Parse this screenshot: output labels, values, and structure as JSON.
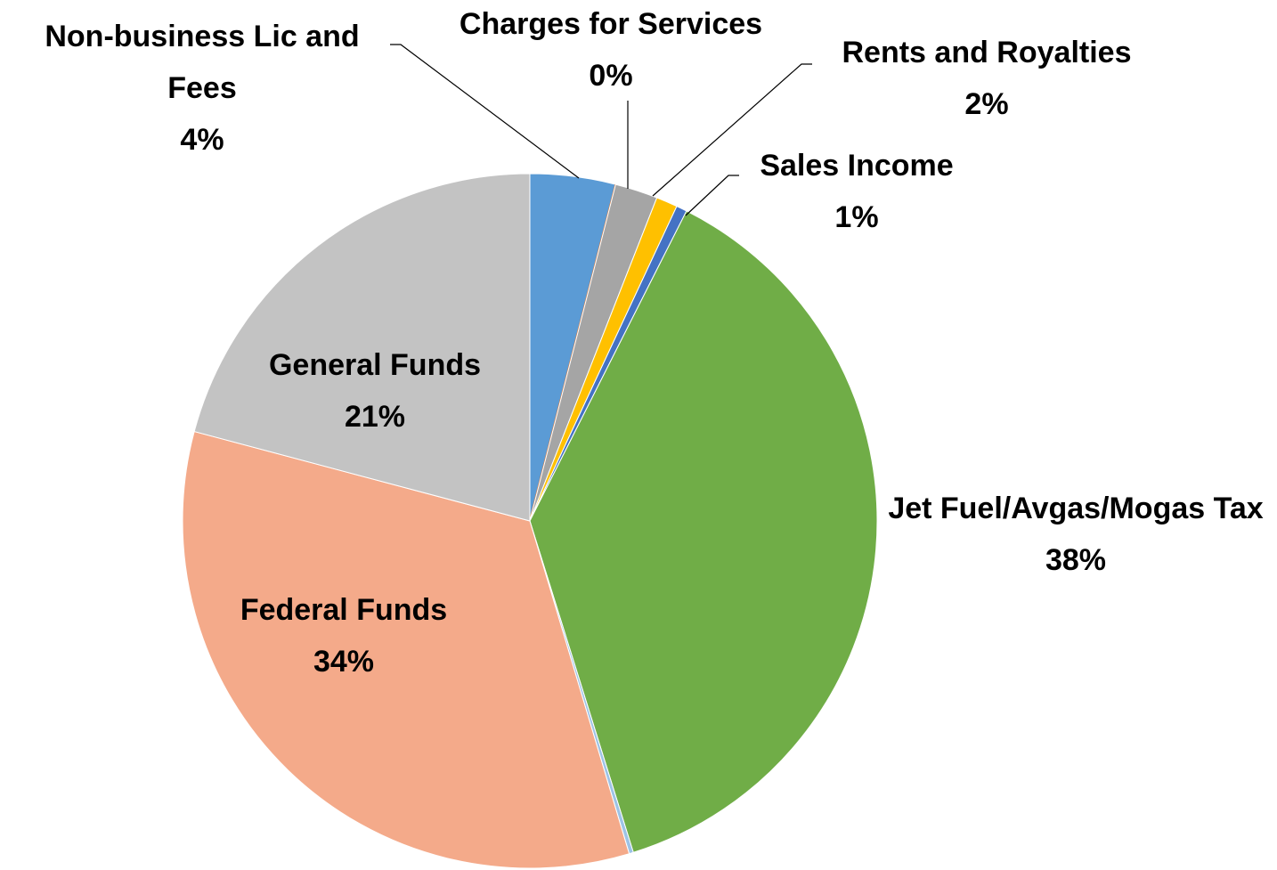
{
  "chart_data": {
    "type": "pie",
    "categories": [
      "Non-business Lic and Fees",
      "Charges for Services",
      "Rents and Royalties",
      "Sales Income",
      null,
      "Jet Fuel/Avgas/Mogas Tax",
      null,
      "Federal Funds",
      "General Funds"
    ],
    "values": [
      4,
      0,
      2,
      1,
      0.5,
      38,
      0.2,
      34,
      21
    ],
    "value_labels": [
      "4%",
      "0%",
      "2%",
      "1%",
      null,
      "38%",
      null,
      "34%",
      "21%"
    ],
    "colors": [
      "#5b9bd5",
      "#ed7d31",
      "#a5a5a5",
      "#ffc000",
      "#4472c4",
      "#70ad47",
      "#9dc3e6",
      "#f4aa8a",
      "#c3c3c3"
    ]
  }
}
